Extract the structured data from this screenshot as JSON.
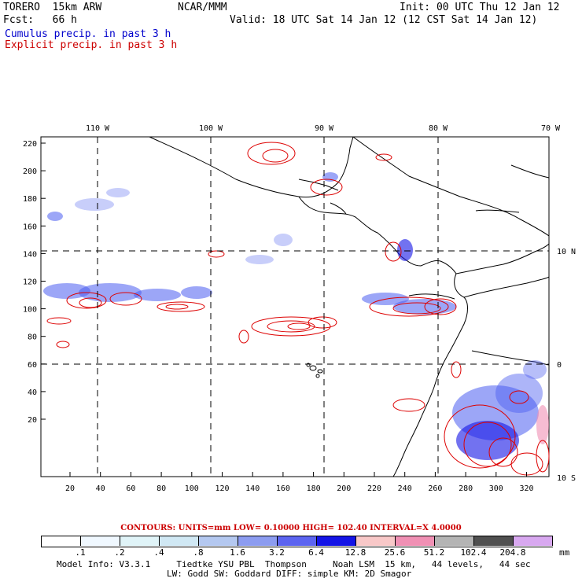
{
  "header": {
    "title_left": "TORERO  15km ARW",
    "title_center": "NCAR/MMM",
    "init": "Init: 00 UTC Thu 12 Jan 12",
    "fcst": "Fcst:   66 h",
    "valid": "Valid: 18 UTC Sat 14 Jan 12 (12 CST Sat 14 Jan 12)",
    "cumulus": "Cumulus precip. in past 3 h",
    "explicit": "Explicit precip. in past 3 h"
  },
  "colors": {
    "cumulus_text": "#0000cc",
    "explicit_text": "#cc0000",
    "contour": "#dd0000"
  },
  "map": {
    "lon_labels": [
      "110 W",
      "100 W",
      "90 W",
      "80 W",
      "70 W"
    ],
    "lat_labels": [
      "10 N",
      "0",
      "10 S"
    ],
    "y_ticks": [
      "220",
      "200",
      "180",
      "160",
      "140",
      "120",
      "100",
      "80",
      "60",
      "40",
      "20"
    ],
    "x_ticks": [
      "20",
      "40",
      "60",
      "80",
      "100",
      "120",
      "140",
      "160",
      "180",
      "200",
      "220",
      "240",
      "260",
      "280",
      "300",
      "320"
    ]
  },
  "colorbar": {
    "labels": [
      ".1",
      ".2",
      ".4",
      ".8",
      "1.6",
      "3.2",
      "6.4",
      "12.8",
      "25.6",
      "51.2",
      "102.4",
      "204.8"
    ],
    "unit": "mm",
    "colors": [
      "#ffffff",
      "#f0f8ff",
      "#e0f4f8",
      "#d0e8f4",
      "#b4c8f0",
      "#8c9cf0",
      "#5c64f0",
      "#1414e6",
      "#f8c8c8",
      "#f090b4",
      "#b4b4b4",
      "#505050",
      "#d8a8f0"
    ]
  },
  "contours_line": "CONTOURS:  UNITS=mm  LOW= 0.10000       HIGH=  102.40       INTERVAL=X  4.0000",
  "footer": {
    "line1": "Model Info: V3.3.1     Tiedtke YSU PBL  Thompson     Noah LSM  15 km,   44 levels,   44 sec",
    "line2": "LW: Godd SW: Goddard DIFF: simple KM: 2D Smagor"
  }
}
